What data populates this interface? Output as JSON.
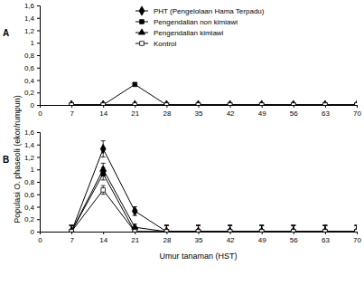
{
  "chart_data": [
    {
      "type": "line",
      "title": "A",
      "y_label": "Populasi O. phaseoli (ekor/rumpun)",
      "legend": "top-left",
      "x": [
        7,
        14,
        21,
        28,
        35,
        42,
        49,
        56,
        63,
        70
      ],
      "xlim": [
        0,
        70
      ],
      "xticks": [
        0,
        7,
        14,
        21,
        28,
        35,
        42,
        49,
        56,
        63,
        70
      ],
      "ylim": [
        0,
        1.6
      ],
      "yticks": [
        0,
        {
          "value": 0.2,
          "label": "0,2"
        },
        {
          "value": 0.4,
          "label": "0,4"
        },
        {
          "value": 0.6,
          "label": "0,6"
        },
        {
          "value": 0.8,
          "label": "0,8"
        },
        {
          "value": 1,
          "label": "1"
        },
        {
          "value": 1.2,
          "label": "1,2"
        },
        {
          "value": 1.4,
          "label": "1,4"
        },
        {
          "value": 1.6,
          "label": "1,6"
        }
      ],
      "series": [
        {
          "name": "PHT (Pengelolaan Hama Terpadu)",
          "color": "#000000",
          "marker": "diamond",
          "values": [
            0,
            0,
            0,
            0,
            0,
            0,
            0,
            0,
            0,
            0
          ]
        },
        {
          "name": "Pengendalian non kimiawi",
          "color": "#000000",
          "marker": "square",
          "values": [
            0,
            0,
            0.33,
            0,
            0,
            0,
            0,
            0,
            0,
            0
          ]
        },
        {
          "name": "Pengendalian kimiawi",
          "color": "#000000",
          "marker": "triangle",
          "values": [
            0,
            0,
            0,
            0,
            0,
            0,
            0,
            0,
            0,
            0
          ]
        },
        {
          "name": "Kontrol",
          "color": "#000000",
          "marker": "open-square",
          "values": [
            0,
            0,
            0,
            0,
            0,
            0,
            0,
            0,
            0,
            0
          ]
        }
      ]
    },
    {
      "type": "line",
      "title": "B",
      "x_label": "Umur tanaman (HST)",
      "x": [
        7,
        14,
        21,
        28,
        35,
        42,
        49,
        56,
        63,
        70
      ],
      "xlim": [
        0,
        70
      ],
      "xticks": [
        0,
        7,
        14,
        21,
        28,
        35,
        42,
        49,
        56,
        63,
        70
      ],
      "ylim": [
        0,
        1.6
      ],
      "yticks": [
        0,
        {
          "value": 0.2,
          "label": "0,2"
        },
        {
          "value": 0.4,
          "label": "0,4"
        },
        {
          "value": 0.6,
          "label": "0,6"
        },
        {
          "value": 0.8,
          "label": "0,8"
        },
        {
          "value": 1,
          "label": "1"
        },
        {
          "value": 1.2,
          "label": "1,2"
        },
        {
          "value": 1.4,
          "label": "1,4"
        },
        {
          "value": 1.6,
          "label": "1,6"
        }
      ],
      "series": [
        {
          "color": "#000000",
          "marker": "diamond",
          "values": [
            0,
            1.33,
            0.33,
            0,
            0,
            0,
            0,
            0,
            0,
            0
          ],
          "errors": [
            0.1,
            0.13,
            0.07,
            0.1,
            0.1,
            0.1,
            0.1,
            0.1,
            0.1,
            0.1
          ]
        },
        {
          "color": "#000000",
          "marker": "square",
          "values": [
            0,
            0.93,
            0,
            0,
            0,
            0,
            0,
            0,
            0,
            0
          ],
          "errors": [
            0.1,
            0.1,
            0.05,
            0.1,
            0.1,
            0.1,
            0.1,
            0.1,
            0.1,
            0.1
          ]
        },
        {
          "color": "#000000",
          "marker": "triangle",
          "values": [
            0,
            1.0,
            0.07,
            0,
            0,
            0,
            0,
            0,
            0,
            0
          ],
          "errors": [
            0.1,
            0.1,
            0.05,
            0.1,
            0.1,
            0.1,
            0.1,
            0.1,
            0.1,
            0.1
          ]
        },
        {
          "color": "#000000",
          "marker": "open-square",
          "values": [
            0,
            0.67,
            0,
            0,
            0,
            0,
            0,
            0,
            0,
            0
          ],
          "errors": [
            0.1,
            0.07,
            0.05,
            0.1,
            0.1,
            0.1,
            0.1,
            0.1,
            0.1,
            0.1
          ]
        }
      ]
    }
  ]
}
